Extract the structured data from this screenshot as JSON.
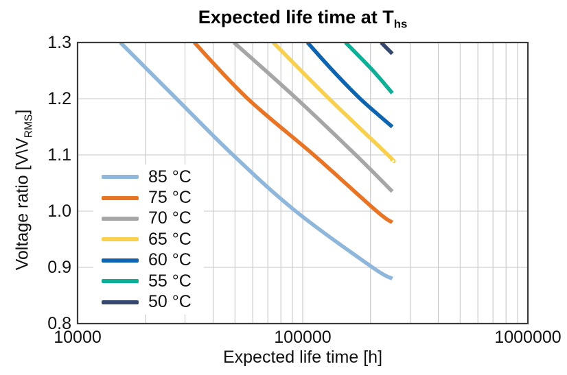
{
  "title": {
    "main": "Expected life time at T",
    "sub": "hs"
  },
  "x_axis": {
    "label": "Expected life time [h]",
    "ticks": [
      "10000",
      "100000",
      "1000000"
    ],
    "scale": "log"
  },
  "y_axis": {
    "label_prefix": "Voltage ratio [V\\V",
    "label_sub": "RMS",
    "label_suffix": "]",
    "ticks": [
      "1.3",
      "1.2",
      "1.1",
      "1.0",
      "0.9",
      "0.8"
    ]
  },
  "chart_data": {
    "type": "line",
    "title": "Expected life time at T_hs",
    "xlabel": "Expected life time [h]",
    "ylabel": "Voltage ratio [V\\V_RMS]",
    "x_scale": "log",
    "xlim": [
      10000,
      1000000
    ],
    "ylim": [
      0.8,
      1.3
    ],
    "grid": true,
    "legend_position": "inside-lower-left",
    "series": [
      {
        "name": "85 °C",
        "color": "#8fb7db",
        "points": [
          [
            15500,
            1.3
          ],
          [
            27500,
            1.2
          ],
          [
            49000,
            1.1
          ],
          [
            93000,
            1.0
          ],
          [
            204000,
            0.9
          ],
          [
            250000,
            0.88
          ]
        ]
      },
      {
        "name": "75 °C",
        "color": "#e87425",
        "points": [
          [
            33000,
            1.3
          ],
          [
            57000,
            1.2
          ],
          [
            112000,
            1.1
          ],
          [
            213000,
            1.0
          ],
          [
            250000,
            0.98
          ]
        ]
      },
      {
        "name": "70 °C",
        "color": "#a6a6a6",
        "points": [
          [
            49500,
            1.3
          ],
          [
            94000,
            1.2
          ],
          [
            172000,
            1.1
          ],
          [
            250000,
            1.035
          ]
        ]
      },
      {
        "name": "65 °C",
        "color": "#f8d04d",
        "points": [
          [
            74000,
            1.3
          ],
          [
            131000,
            1.2
          ],
          [
            239000,
            1.1
          ],
          [
            250000,
            1.09
          ]
        ]
      },
      {
        "name": "60 °C",
        "color": "#0e64ae",
        "points": [
          [
            105000,
            1.3
          ],
          [
            136000,
            1.25
          ],
          [
            180000,
            1.2
          ],
          [
            250000,
            1.15
          ]
        ]
      },
      {
        "name": "55 °C",
        "color": "#0fae96",
        "points": [
          [
            155000,
            1.3
          ],
          [
            205000,
            1.25
          ],
          [
            250000,
            1.21
          ]
        ]
      },
      {
        "name": "50 °C",
        "color": "#37486f",
        "points": [
          [
            223000,
            1.3
          ],
          [
            250000,
            1.28
          ]
        ]
      }
    ]
  }
}
